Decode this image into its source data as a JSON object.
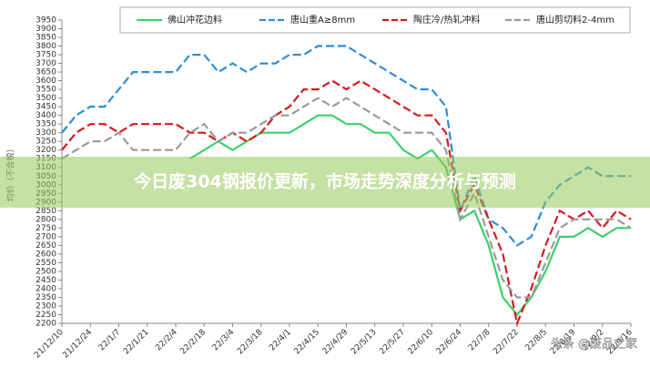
{
  "chart_data": {
    "type": "line",
    "y_label": "均价（不含税）",
    "categories": [
      "21/12/10",
      null,
      "21/12/24",
      null,
      "22/1/7",
      null,
      "22/1/21",
      null,
      "22/2/4",
      null,
      "22/2/18",
      null,
      "22/3/4",
      null,
      "22/3/18",
      null,
      "22/4/1",
      null,
      "22/4/15",
      null,
      "22/4/29",
      null,
      "22/5/13",
      null,
      "22/5/27",
      null,
      "22/6/10",
      null,
      "22/6/24",
      null,
      "22/7/8",
      null,
      "22/7/22",
      null,
      "22/8/5",
      null,
      "22/8/19",
      null,
      "22/9/2",
      null,
      "22/9/16"
    ],
    "series": [
      {
        "name": "佛山冲花边料",
        "color": "#3ecf6a",
        "dashed": false,
        "values": [
          null,
          null,
          null,
          null,
          null,
          null,
          null,
          null,
          null,
          3150,
          3200,
          3250,
          3200,
          3250,
          3300,
          3300,
          3300,
          3350,
          3400,
          3400,
          3350,
          3350,
          3300,
          3300,
          3200,
          3150,
          3200,
          3100,
          2800,
          2850,
          2650,
          2350,
          2250,
          2350,
          2500,
          2700,
          2700,
          2750,
          2700,
          2750,
          2750
        ]
      },
      {
        "name": "唐山重A≥8mm",
        "color": "#2d8ed8",
        "dashed": true,
        "values": [
          3300,
          3400,
          3450,
          3450,
          3550,
          3650,
          3650,
          3650,
          3650,
          3750,
          3750,
          3650,
          3700,
          3650,
          3700,
          3700,
          3750,
          3750,
          3800,
          3800,
          3800,
          3750,
          3700,
          3650,
          3600,
          3550,
          3550,
          3450,
          2850,
          3050,
          2800,
          2750,
          2650,
          2700,
          2900,
          3000,
          3050,
          3100,
          3050,
          3050,
          3050
        ]
      },
      {
        "name": "陶庄冷/热轧冲料",
        "color": "#d7191c",
        "dashed": true,
        "values": [
          3200,
          3300,
          3350,
          3350,
          3300,
          3350,
          3350,
          3350,
          3350,
          3300,
          3300,
          3250,
          3300,
          3250,
          3300,
          3400,
          3450,
          3550,
          3550,
          3600,
          3550,
          3600,
          3550,
          3500,
          3450,
          3400,
          3400,
          3300,
          2850,
          3000,
          2800,
          2600,
          2200,
          2400,
          2650,
          2850,
          2800,
          2850,
          2750,
          2850,
          2800
        ]
      },
      {
        "name": "唐山剪切料2-4mm",
        "color": "#9a9a9a",
        "dashed": true,
        "values": [
          3150,
          3200,
          3250,
          3250,
          3300,
          3200,
          3200,
          3200,
          3200,
          3300,
          3350,
          3250,
          3300,
          3300,
          3350,
          3400,
          3400,
          3450,
          3500,
          3450,
          3500,
          3450,
          3400,
          3350,
          3300,
          3300,
          3300,
          3200,
          2800,
          2950,
          2700,
          2450,
          2350,
          2350,
          2550,
          2750,
          2800,
          2800,
          2800,
          2800,
          2750
        ]
      }
    ],
    "ylim": [
      2200,
      3950
    ],
    "yticks": [
      2200,
      2250,
      2300,
      2350,
      2400,
      2450,
      2500,
      2550,
      2600,
      2650,
      2700,
      2750,
      2800,
      2850,
      2900,
      2950,
      3000,
      3050,
      3100,
      3150,
      3200,
      3250,
      3300,
      3350,
      3400,
      3450,
      3500,
      3550,
      3600,
      3650,
      3700,
      3750,
      3800,
      3850,
      3900,
      3950
    ],
    "grid": false,
    "legend": "top"
  },
  "banner_title": "今日废304钢报价更新，市场走势深度分析与预测",
  "watermark": "头条 @废品之家"
}
